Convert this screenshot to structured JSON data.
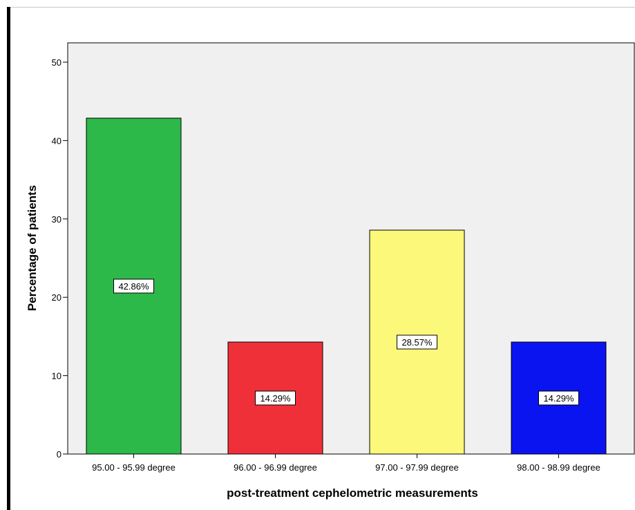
{
  "chart_data": {
    "type": "bar",
    "categories": [
      "95.00 - 95.99 degree",
      "96.00 - 96.99 degree",
      "97.00 - 97.99 degree",
      "98.00 - 98.99 degree"
    ],
    "values": [
      42.86,
      14.29,
      28.57,
      14.29
    ],
    "data_labels": [
      "42.86%",
      "14.29%",
      "28.57%",
      "14.29%"
    ],
    "colors": [
      "#2db84a",
      "#f03038",
      "#fbf87a",
      "#0a14f0"
    ],
    "ylabel": "Percentage of patients",
    "xlabel": "post-treatment cephelometric measurements",
    "ylim": [
      0,
      50
    ],
    "yticks": [
      "0",
      "10",
      "20",
      "30",
      "40",
      "50"
    ],
    "plot_background": "#f0f0f0",
    "grid": false
  }
}
